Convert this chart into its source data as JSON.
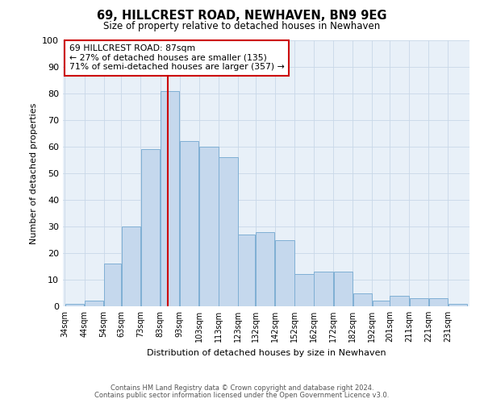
{
  "title": "69, HILLCREST ROAD, NEWHAVEN, BN9 9EG",
  "subtitle": "Size of property relative to detached houses in Newhaven",
  "xlabel": "Distribution of detached houses by size in Newhaven",
  "ylabel": "Number of detached properties",
  "bin_labels": [
    "34sqm",
    "44sqm",
    "54sqm",
    "63sqm",
    "73sqm",
    "83sqm",
    "93sqm",
    "103sqm",
    "113sqm",
    "123sqm",
    "132sqm",
    "142sqm",
    "152sqm",
    "162sqm",
    "172sqm",
    "182sqm",
    "192sqm",
    "201sqm",
    "211sqm",
    "221sqm",
    "231sqm"
  ],
  "bar_values": [
    1,
    2,
    16,
    30,
    59,
    81,
    62,
    60,
    56,
    27,
    28,
    25,
    12,
    13,
    13,
    5,
    2,
    4,
    3,
    3,
    1
  ],
  "bar_color": "#c5d8ed",
  "bar_edgecolor": "#7fafd4",
  "vline_x": 87,
  "vline_color": "#cc0000",
  "annotation_line1": "69 HILLCREST ROAD: 87sqm",
  "annotation_line2": "← 27% of detached houses are smaller (135)",
  "annotation_line3": "71% of semi-detached houses are larger (357) →",
  "annotation_box_edgecolor": "#cc0000",
  "ylim": [
    0,
    100
  ],
  "yticks": [
    0,
    10,
    20,
    30,
    40,
    50,
    60,
    70,
    80,
    90,
    100
  ],
  "grid_color": "#c8d8e8",
  "bg_color": "#e8f0f8",
  "footer1": "Contains HM Land Registry data © Crown copyright and database right 2024.",
  "footer2": "Contains public sector information licensed under the Open Government Licence v3.0.",
  "bin_edges": [
    34,
    44,
    54,
    63,
    73,
    83,
    93,
    103,
    113,
    123,
    132,
    142,
    152,
    162,
    172,
    182,
    192,
    201,
    211,
    221,
    231,
    241
  ]
}
